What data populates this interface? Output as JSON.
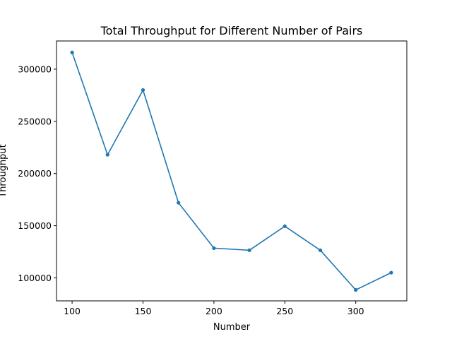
{
  "chart_data": {
    "type": "line",
    "title": "Total Throughput for Different Number of Pairs",
    "xlabel": "Number",
    "ylabel": "Throughput",
    "xlim": [
      89,
      336
    ],
    "ylim": [
      78000,
      327000
    ],
    "xticks": [
      100,
      150,
      200,
      250,
      300
    ],
    "yticks": [
      100000,
      150000,
      200000,
      250000,
      300000
    ],
    "grid": false,
    "series": [
      {
        "color": "#1f77b4",
        "marker": "circle",
        "x": [
          100,
          125,
          150,
          175,
          200,
          225,
          250,
          275,
          300,
          325
        ],
        "y": [
          316000,
          218000,
          280000,
          172000,
          128500,
          126500,
          149500,
          126500,
          88500,
          105000
        ]
      }
    ]
  }
}
